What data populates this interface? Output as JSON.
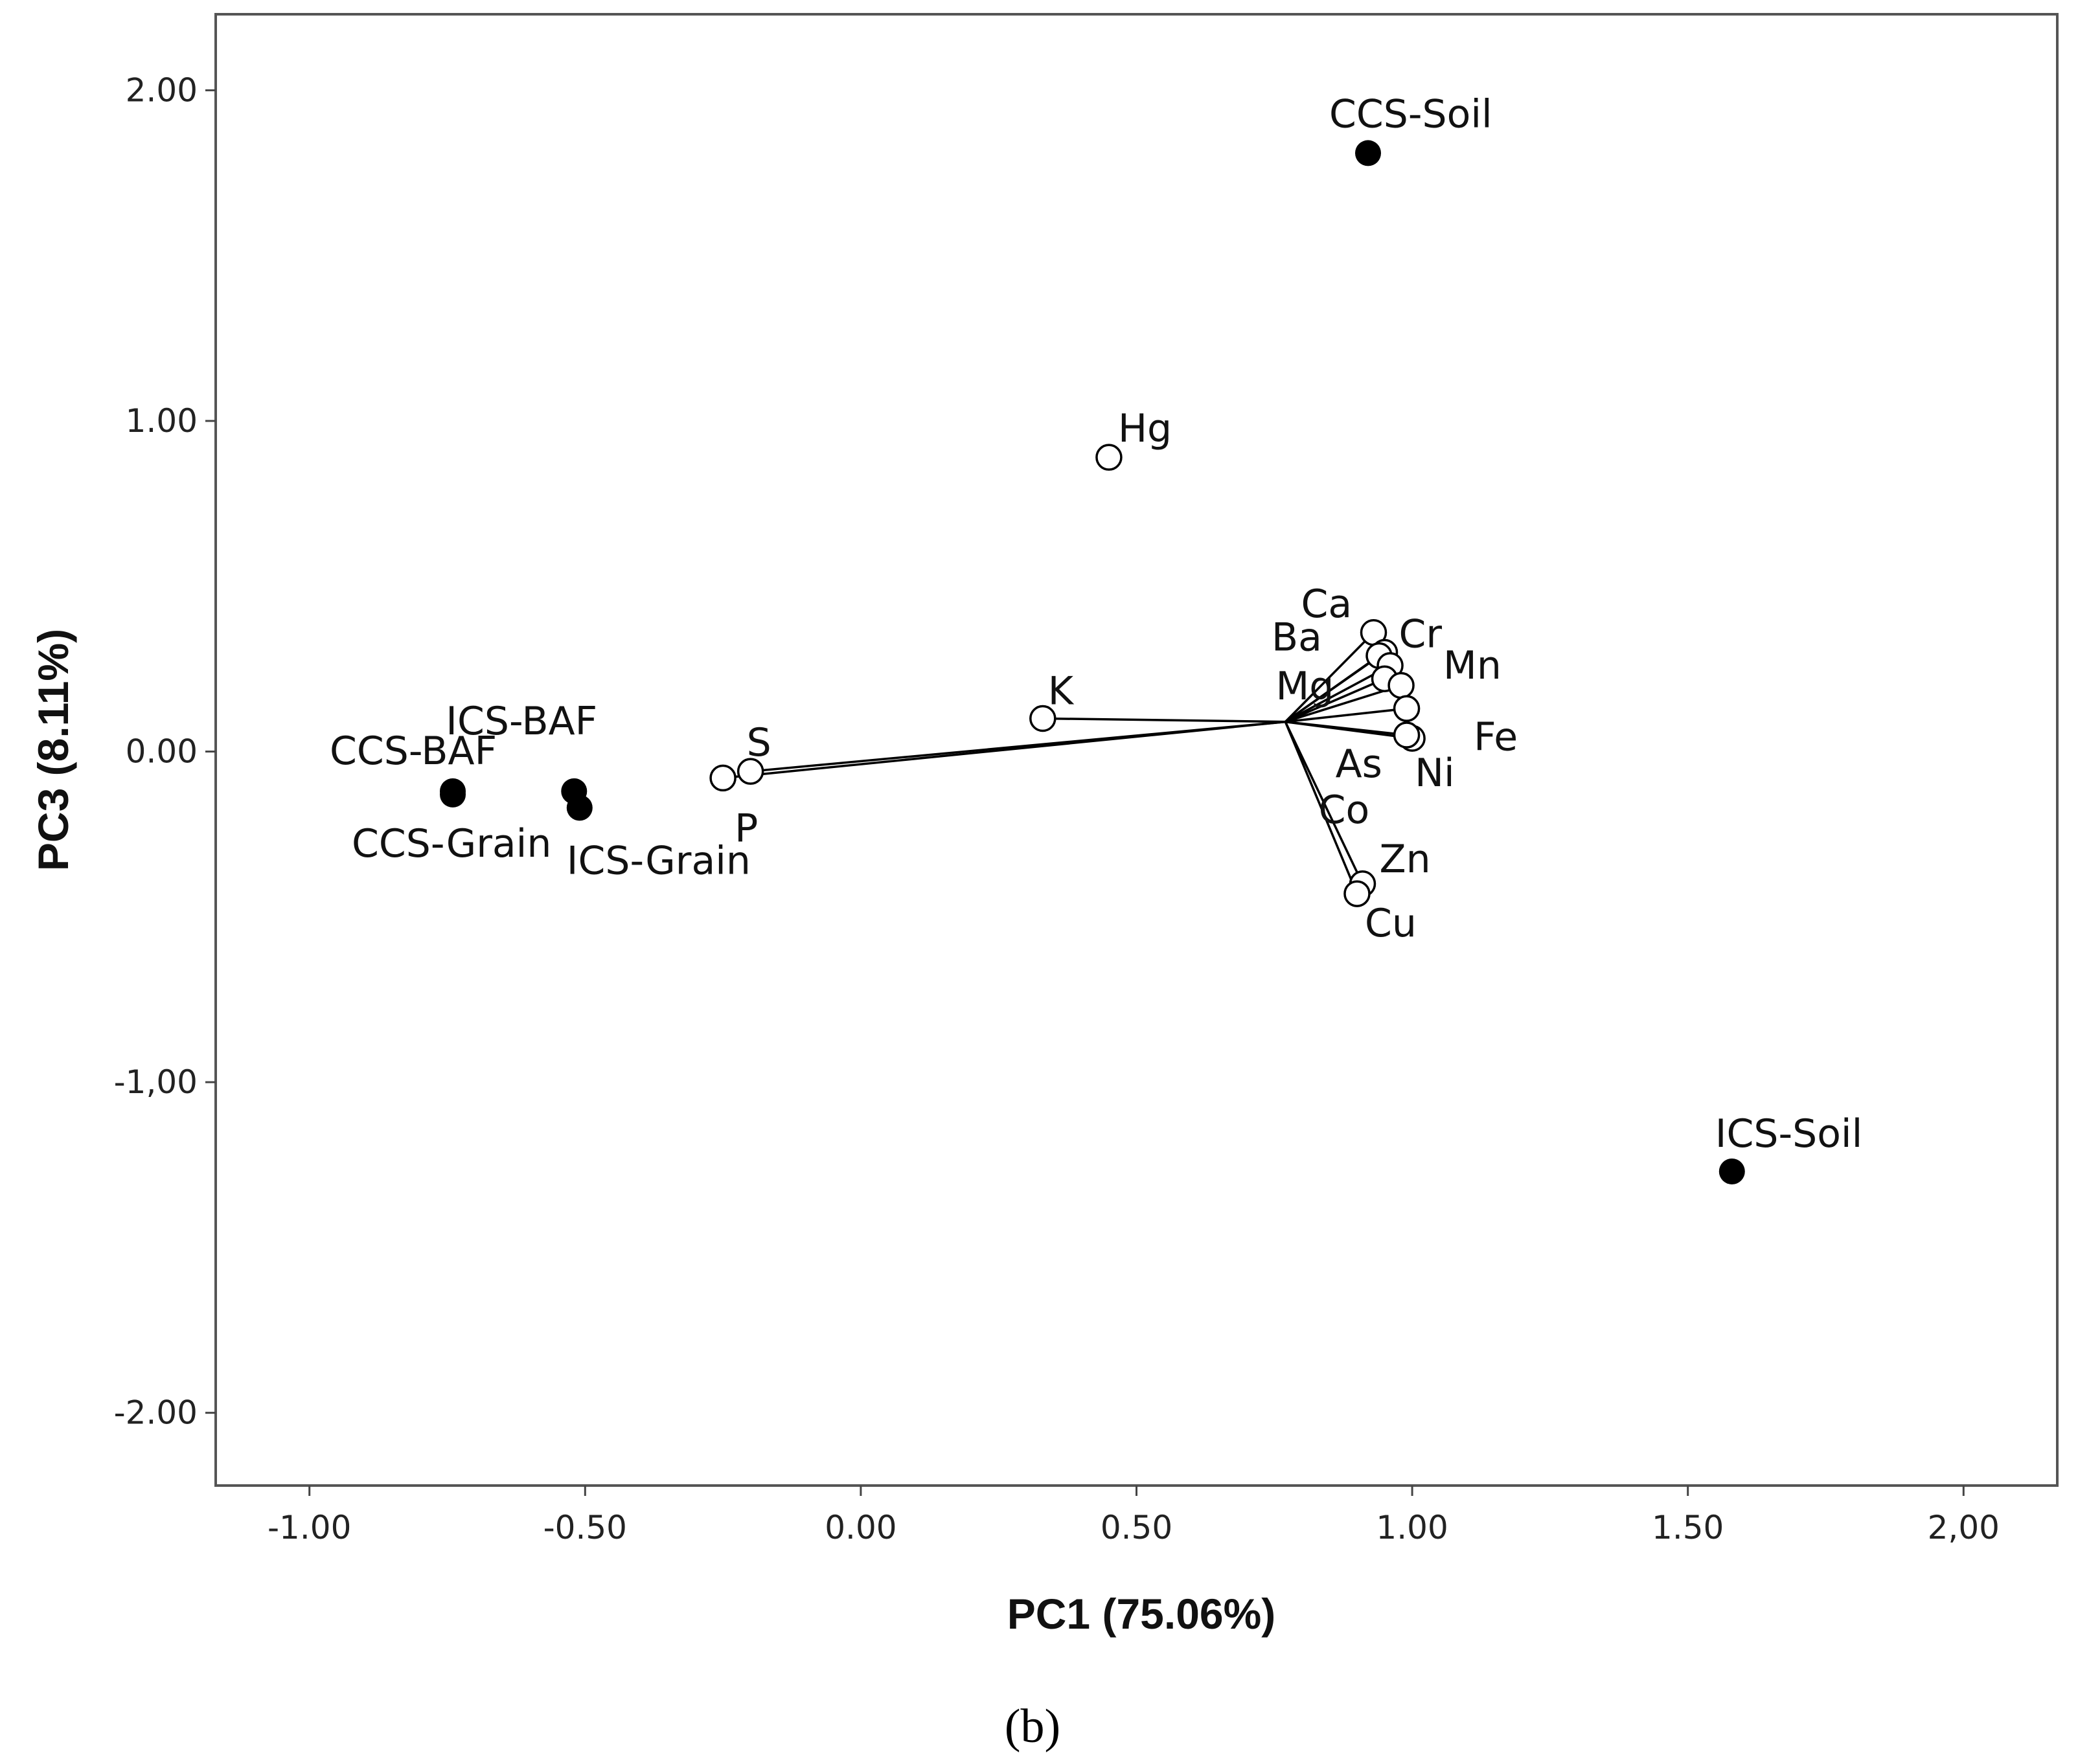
{
  "chart_data": {
    "type": "scatter",
    "title": "",
    "xlabel": "PC1 (75.06%)",
    "ylabel": "PC3 (8.11%)",
    "xlim": [
      -1.17,
      2.17
    ],
    "ylim": [
      -2.22,
      2.23
    ],
    "grid": false,
    "x_ticks": [
      {
        "value": -1.0,
        "label": "-1.00"
      },
      {
        "value": -0.5,
        "label": "-0.50"
      },
      {
        "value": 0.0,
        "label": "0.00"
      },
      {
        "value": 0.5,
        "label": "0.50"
      },
      {
        "value": 1.0,
        "label": "1.00"
      },
      {
        "value": 1.5,
        "label": "1.50"
      },
      {
        "value": 2.0,
        "label": "2,00"
      }
    ],
    "y_ticks": [
      {
        "value": 2.0,
        "label": "2.00"
      },
      {
        "value": 1.0,
        "label": "1.00"
      },
      {
        "value": 0.0,
        "label": "0.00"
      },
      {
        "value": -1.0,
        "label": "-1,00"
      },
      {
        "value": -2.0,
        "label": "-2.00"
      }
    ],
    "vector_origin": {
      "x": 0.77,
      "y": 0.09
    },
    "samples": [
      {
        "name": "CCS-Soil",
        "x": 0.92,
        "y": 1.81,
        "label": "CCS-Soil"
      },
      {
        "name": "ICS-Soil",
        "x": 1.58,
        "y": -1.27,
        "label": "ICS-Soil"
      },
      {
        "name": "CCS-BAF",
        "x": -0.74,
        "y": -0.12,
        "label": "CCS-BAF"
      },
      {
        "name": "CCS-Grain",
        "x": -0.74,
        "y": -0.13,
        "label": "CCS-Grain"
      },
      {
        "name": "ICS-BAF",
        "x": -0.52,
        "y": -0.12,
        "label": "ICS-BAF"
      },
      {
        "name": "ICS-Grain",
        "x": -0.51,
        "y": -0.17,
        "label": "ICS-Grain"
      }
    ],
    "variables": [
      {
        "name": "Hg",
        "x": 0.45,
        "y": 0.89,
        "label": "Hg",
        "vector": false
      },
      {
        "name": "K",
        "x": 0.33,
        "y": 0.1,
        "label": "K",
        "vector": true
      },
      {
        "name": "S",
        "x": -0.2,
        "y": -0.06,
        "label": "S",
        "vector": true
      },
      {
        "name": "P",
        "x": -0.25,
        "y": -0.08,
        "label": "P",
        "vector": true
      },
      {
        "name": "Ca",
        "x": 0.93,
        "y": 0.36,
        "label": "Ca",
        "vector": true
      },
      {
        "name": "Cr",
        "x": 0.95,
        "y": 0.3,
        "label": "Cr",
        "vector": true
      },
      {
        "name": "Ba",
        "x": 0.94,
        "y": 0.29,
        "label": "Ba",
        "vector": true
      },
      {
        "name": "Mn",
        "x": 0.96,
        "y": 0.26,
        "label": "Mn",
        "vector": true
      },
      {
        "name": "Mg",
        "x": 0.95,
        "y": 0.22,
        "label": "Mg",
        "vector": true
      },
      {
        "name": "Fe",
        "x": 0.98,
        "y": 0.2,
        "label": "Fe",
        "vector": true
      },
      {
        "name": "As",
        "x": 0.99,
        "y": 0.13,
        "label": "As",
        "vector": true
      },
      {
        "name": "Ni",
        "x": 1.0,
        "y": 0.04,
        "label": "Ni",
        "vector": true
      },
      {
        "name": "Co",
        "x": 0.99,
        "y": 0.05,
        "label": "Co",
        "vector": true
      },
      {
        "name": "Zn",
        "x": 0.91,
        "y": -0.4,
        "label": "Zn",
        "vector": true
      },
      {
        "name": "Cu",
        "x": 0.9,
        "y": -0.43,
        "label": "Cu",
        "vector": true
      }
    ],
    "caption": "(b)"
  }
}
